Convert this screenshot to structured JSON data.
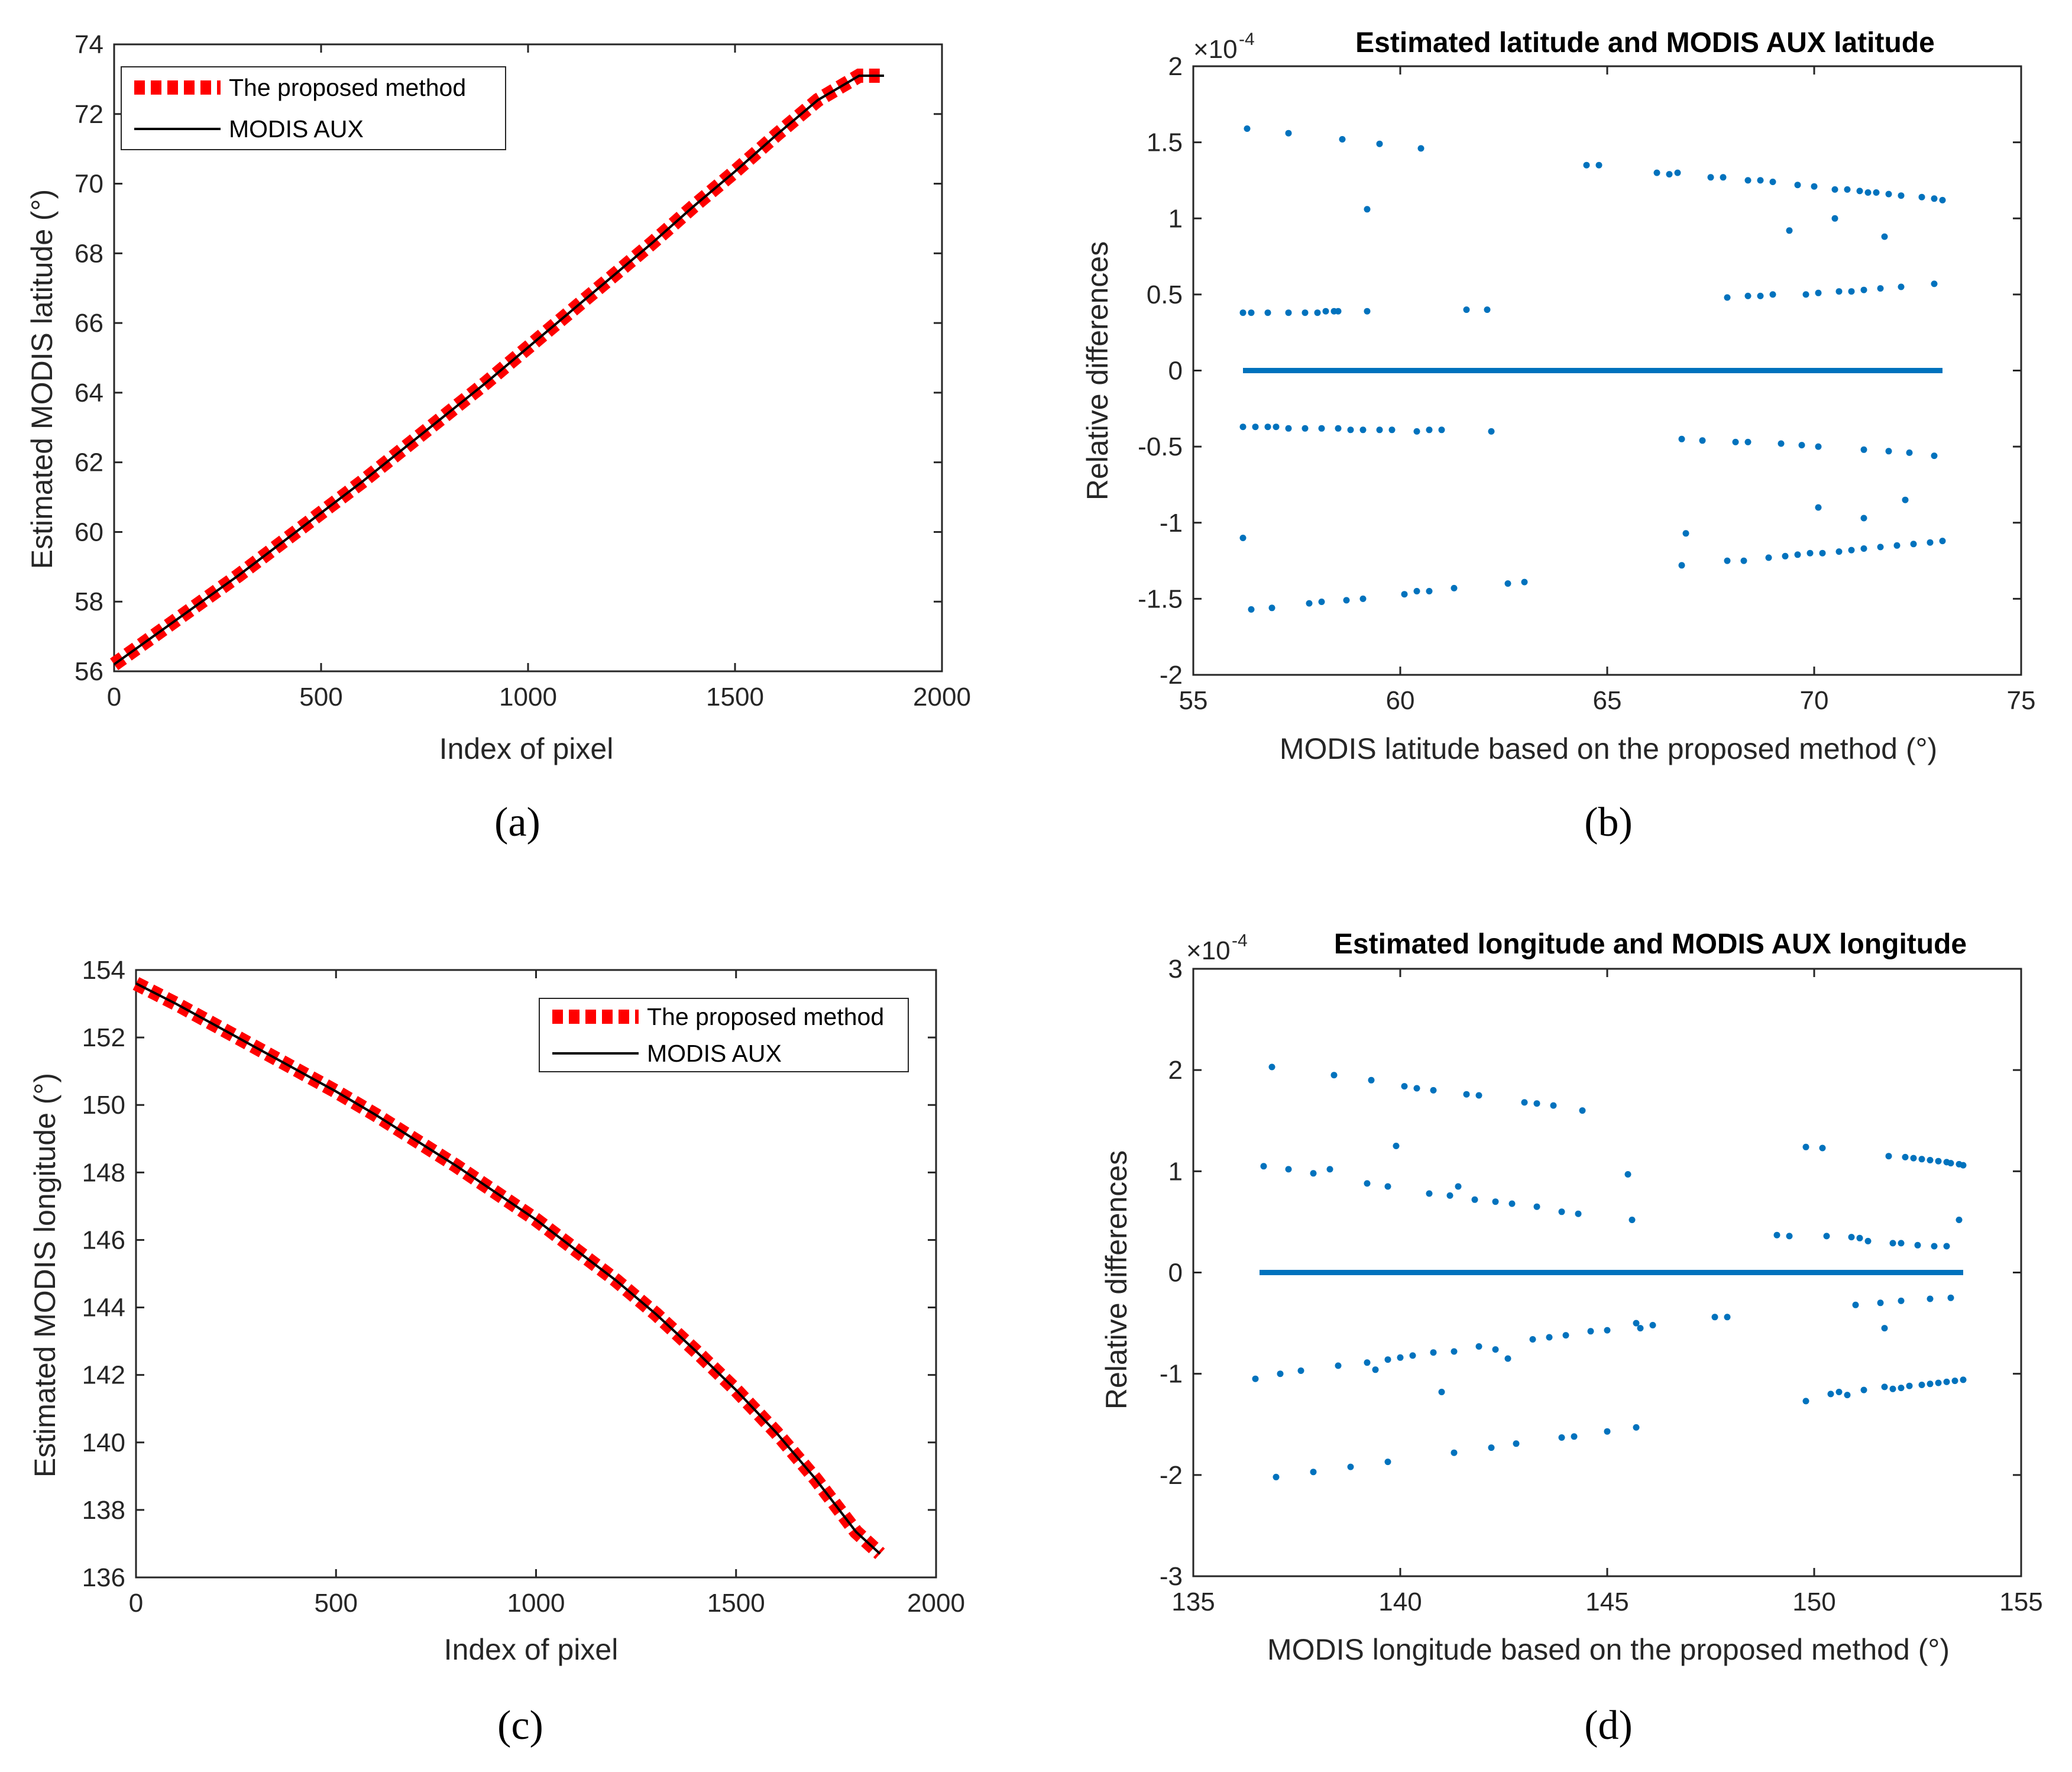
{
  "chart_data": [
    {
      "id": "a",
      "type": "line",
      "caption": "(a)",
      "xlabel": "Index of pixel",
      "ylabel": "Estimated MODIS latitude (°)",
      "title": "",
      "xlim": [
        0,
        2000
      ],
      "ylim": [
        56,
        74
      ],
      "xticks": [
        0,
        500,
        1000,
        1500,
        2000
      ],
      "yticks": [
        56,
        58,
        60,
        62,
        64,
        66,
        68,
        70,
        72,
        74
      ],
      "xtick_labels": [
        "0",
        "500",
        "1000",
        "1500",
        "2000"
      ],
      "ytick_labels": [
        "56",
        "58",
        "60",
        "62",
        "64",
        "66",
        "68",
        "70",
        "72",
        "74"
      ],
      "legend_position": "top-left",
      "series": [
        {
          "name": "The proposed method",
          "style": "dashed",
          "color": "#ff0000",
          "x": [
            0,
            100,
            200,
            300,
            400,
            500,
            600,
            700,
            800,
            900,
            1000,
            1100,
            1200,
            1300,
            1400,
            1500,
            1600,
            1700,
            1800,
            1860
          ],
          "y": [
            56.2,
            57.05,
            57.9,
            58.75,
            59.65,
            60.55,
            61.45,
            62.4,
            63.35,
            64.3,
            65.3,
            66.3,
            67.3,
            68.3,
            69.35,
            70.35,
            71.4,
            72.4,
            73.1,
            73.1
          ]
        },
        {
          "name": "MODIS AUX",
          "style": "solid",
          "color": "#000000",
          "x": [
            0,
            100,
            200,
            300,
            400,
            500,
            600,
            700,
            800,
            900,
            1000,
            1100,
            1200,
            1300,
            1400,
            1500,
            1600,
            1700,
            1800,
            1860
          ],
          "y": [
            56.2,
            57.05,
            57.9,
            58.75,
            59.65,
            60.55,
            61.45,
            62.4,
            63.35,
            64.3,
            65.3,
            66.3,
            67.3,
            68.3,
            69.35,
            70.35,
            71.4,
            72.4,
            73.1,
            73.1
          ]
        }
      ]
    },
    {
      "id": "b",
      "type": "scatter",
      "caption": "(b)",
      "title": "Estimated latitude and MODIS AUX latitude",
      "xlabel": "MODIS latitude based on the proposed method (°)",
      "ylabel": "Relative differences",
      "exponent_label": "×10",
      "exponent_power": "-4",
      "xlim": [
        55,
        75
      ],
      "ylim": [
        -2,
        2
      ],
      "xticks": [
        55,
        60,
        65,
        70,
        75
      ],
      "yticks": [
        -2,
        -1.5,
        -1,
        -0.5,
        0,
        0.5,
        1,
        1.5,
        2
      ],
      "xtick_labels": [
        "55",
        "60",
        "65",
        "70",
        "75"
      ],
      "ytick_labels": [
        "-2",
        "-1.5",
        "-1",
        "-0.5",
        "0",
        "0.5",
        "1",
        "1.5",
        "2"
      ],
      "zero_line": [
        56.2,
        73.1
      ],
      "points": [
        [
          56.3,
          1.59
        ],
        [
          57.3,
          1.56
        ],
        [
          58.6,
          1.52
        ],
        [
          59.5,
          1.49
        ],
        [
          60.5,
          1.46
        ],
        [
          59.2,
          1.06
        ],
        [
          64.5,
          1.35
        ],
        [
          64.8,
          1.35
        ],
        [
          66.2,
          1.3
        ],
        [
          66.5,
          1.29
        ],
        [
          66.7,
          1.3
        ],
        [
          67.5,
          1.27
        ],
        [
          67.8,
          1.27
        ],
        [
          68.4,
          1.25
        ],
        [
          68.7,
          1.25
        ],
        [
          69.0,
          1.24
        ],
        [
          69.6,
          1.22
        ],
        [
          70.0,
          1.21
        ],
        [
          70.5,
          1.19
        ],
        [
          70.8,
          1.19
        ],
        [
          71.1,
          1.18
        ],
        [
          71.3,
          1.17
        ],
        [
          71.5,
          1.17
        ],
        [
          71.8,
          1.16
        ],
        [
          72.1,
          1.15
        ],
        [
          72.6,
          1.14
        ],
        [
          72.9,
          1.13
        ],
        [
          73.1,
          1.12
        ],
        [
          69.4,
          0.92
        ],
        [
          70.5,
          1.0
        ],
        [
          71.7,
          0.88
        ],
        [
          56.2,
          0.38
        ],
        [
          56.4,
          0.38
        ],
        [
          56.8,
          0.38
        ],
        [
          57.3,
          0.38
        ],
        [
          57.7,
          0.38
        ],
        [
          58.0,
          0.38
        ],
        [
          58.2,
          0.39
        ],
        [
          58.4,
          0.39
        ],
        [
          58.5,
          0.39
        ],
        [
          59.2,
          0.39
        ],
        [
          61.6,
          0.4
        ],
        [
          62.1,
          0.4
        ],
        [
          67.9,
          0.48
        ],
        [
          68.4,
          0.49
        ],
        [
          68.7,
          0.49
        ],
        [
          69.0,
          0.5
        ],
        [
          69.8,
          0.5
        ],
        [
          70.1,
          0.51
        ],
        [
          70.6,
          0.52
        ],
        [
          70.9,
          0.52
        ],
        [
          71.2,
          0.53
        ],
        [
          71.6,
          0.54
        ],
        [
          72.1,
          0.55
        ],
        [
          72.9,
          0.57
        ],
        [
          56.2,
          -0.37
        ],
        [
          56.5,
          -0.37
        ],
        [
          56.8,
          -0.37
        ],
        [
          57.0,
          -0.37
        ],
        [
          57.3,
          -0.38
        ],
        [
          57.7,
          -0.38
        ],
        [
          58.1,
          -0.38
        ],
        [
          58.5,
          -0.38
        ],
        [
          58.8,
          -0.39
        ],
        [
          59.1,
          -0.39
        ],
        [
          59.5,
          -0.39
        ],
        [
          59.8,
          -0.39
        ],
        [
          60.4,
          -0.4
        ],
        [
          60.7,
          -0.39
        ],
        [
          61.0,
          -0.39
        ],
        [
          62.2,
          -0.4
        ],
        [
          66.8,
          -0.45
        ],
        [
          67.3,
          -0.46
        ],
        [
          68.1,
          -0.47
        ],
        [
          68.4,
          -0.47
        ],
        [
          69.2,
          -0.48
        ],
        [
          69.7,
          -0.49
        ],
        [
          70.1,
          -0.5
        ],
        [
          71.2,
          -0.52
        ],
        [
          71.8,
          -0.53
        ],
        [
          72.3,
          -0.54
        ],
        [
          72.9,
          -0.56
        ],
        [
          56.2,
          -1.1
        ],
        [
          66.9,
          -1.07
        ],
        [
          70.1,
          -0.9
        ],
        [
          71.2,
          -0.97
        ],
        [
          72.2,
          -0.85
        ],
        [
          56.4,
          -1.57
        ],
        [
          56.9,
          -1.56
        ],
        [
          57.8,
          -1.53
        ],
        [
          58.1,
          -1.52
        ],
        [
          58.7,
          -1.51
        ],
        [
          59.1,
          -1.5
        ],
        [
          60.1,
          -1.47
        ],
        [
          60.4,
          -1.45
        ],
        [
          60.7,
          -1.45
        ],
        [
          61.3,
          -1.43
        ],
        [
          62.6,
          -1.4
        ],
        [
          63.0,
          -1.39
        ],
        [
          66.8,
          -1.28
        ],
        [
          67.9,
          -1.25
        ],
        [
          68.3,
          -1.25
        ],
        [
          68.9,
          -1.23
        ],
        [
          69.3,
          -1.22
        ],
        [
          69.6,
          -1.21
        ],
        [
          69.9,
          -1.2
        ],
        [
          70.2,
          -1.2
        ],
        [
          70.6,
          -1.19
        ],
        [
          70.9,
          -1.18
        ],
        [
          71.2,
          -1.17
        ],
        [
          71.6,
          -1.16
        ],
        [
          72.0,
          -1.15
        ],
        [
          72.4,
          -1.14
        ],
        [
          72.8,
          -1.13
        ],
        [
          73.1,
          -1.12
        ]
      ]
    },
    {
      "id": "c",
      "type": "line",
      "caption": "(c)",
      "xlabel": "Index of pixel",
      "ylabel": "Estimated MODIS longitude (°)",
      "title": "",
      "xlim": [
        0,
        2000
      ],
      "ylim": [
        136,
        154
      ],
      "xticks": [
        0,
        500,
        1000,
        1500,
        2000
      ],
      "yticks": [
        136,
        138,
        140,
        142,
        144,
        146,
        148,
        150,
        152,
        154
      ],
      "xtick_labels": [
        "0",
        "500",
        "1000",
        "1500",
        "2000"
      ],
      "ytick_labels": [
        "136",
        "138",
        "140",
        "142",
        "144",
        "146",
        "148",
        "150",
        "152",
        "154"
      ],
      "legend_position": "top-right",
      "series": [
        {
          "name": "The proposed method",
          "style": "dashed",
          "color": "#ff0000",
          "x": [
            0,
            100,
            200,
            300,
            400,
            500,
            600,
            700,
            800,
            900,
            1000,
            1100,
            1200,
            1300,
            1400,
            1500,
            1600,
            1700,
            1800,
            1860
          ],
          "y": [
            153.6,
            153.0,
            152.35,
            151.7,
            151.05,
            150.4,
            149.7,
            148.95,
            148.2,
            147.4,
            146.6,
            145.7,
            144.8,
            143.8,
            142.7,
            141.55,
            140.3,
            138.9,
            137.35,
            136.7
          ]
        },
        {
          "name": "MODIS AUX",
          "style": "solid",
          "color": "#000000",
          "x": [
            0,
            100,
            200,
            300,
            400,
            500,
            600,
            700,
            800,
            900,
            1000,
            1100,
            1200,
            1300,
            1400,
            1500,
            1600,
            1700,
            1800,
            1860
          ],
          "y": [
            153.6,
            153.0,
            152.35,
            151.7,
            151.05,
            150.4,
            149.7,
            148.95,
            148.2,
            147.4,
            146.6,
            145.7,
            144.8,
            143.8,
            142.7,
            141.55,
            140.3,
            138.9,
            137.35,
            136.7
          ]
        }
      ]
    },
    {
      "id": "d",
      "type": "scatter",
      "caption": "(d)",
      "title": "Estimated longitude and MODIS AUX longitude",
      "xlabel": "MODIS longitude based on the proposed method (°)",
      "ylabel": "Relative differences",
      "exponent_label": "×10",
      "exponent_power": "-4",
      "xlim": [
        135,
        155
      ],
      "ylim": [
        -3,
        3
      ],
      "xticks": [
        135,
        140,
        145,
        150,
        155
      ],
      "yticks": [
        -3,
        -2,
        -1,
        0,
        1,
        2,
        3
      ],
      "xtick_labels": [
        "135",
        "140",
        "145",
        "150",
        "155"
      ],
      "ytick_labels": [
        "-3",
        "-2",
        "-1",
        "0",
        "1",
        "2",
        "3"
      ],
      "zero_line": [
        136.6,
        153.6
      ],
      "points": [
        [
          136.9,
          2.03
        ],
        [
          138.4,
          1.95
        ],
        [
          139.3,
          1.9
        ],
        [
          140.1,
          1.84
        ],
        [
          140.4,
          1.82
        ],
        [
          140.8,
          1.8
        ],
        [
          141.6,
          1.76
        ],
        [
          141.9,
          1.75
        ],
        [
          143.0,
          1.68
        ],
        [
          143.3,
          1.67
        ],
        [
          143.7,
          1.65
        ],
        [
          144.4,
          1.6
        ],
        [
          136.7,
          1.05
        ],
        [
          137.3,
          1.02
        ],
        [
          137.9,
          0.98
        ],
        [
          138.3,
          1.02
        ],
        [
          139.2,
          0.88
        ],
        [
          139.7,
          0.85
        ],
        [
          139.9,
          1.25
        ],
        [
          140.7,
          0.78
        ],
        [
          141.2,
          0.76
        ],
        [
          141.4,
          0.85
        ],
        [
          141.8,
          0.72
        ],
        [
          142.3,
          0.7
        ],
        [
          142.7,
          0.68
        ],
        [
          143.3,
          0.65
        ],
        [
          143.9,
          0.6
        ],
        [
          144.3,
          0.58
        ],
        [
          145.5,
          0.97
        ],
        [
          145.6,
          0.52
        ],
        [
          149.1,
          0.37
        ],
        [
          149.4,
          0.36
        ],
        [
          150.3,
          0.36
        ],
        [
          149.8,
          1.24
        ],
        [
          150.2,
          1.23
        ],
        [
          150.9,
          0.35
        ],
        [
          151.1,
          0.34
        ],
        [
          151.3,
          0.31
        ],
        [
          151.9,
          0.29
        ],
        [
          152.1,
          0.29
        ],
        [
          152.5,
          0.27
        ],
        [
          152.9,
          0.26
        ],
        [
          153.2,
          0.26
        ],
        [
          153.5,
          0.52
        ],
        [
          151.8,
          1.15
        ],
        [
          152.2,
          1.14
        ],
        [
          152.4,
          1.13
        ],
        [
          152.6,
          1.12
        ],
        [
          152.8,
          1.11
        ],
        [
          153.0,
          1.1
        ],
        [
          153.2,
          1.09
        ],
        [
          153.3,
          1.08
        ],
        [
          153.5,
          1.07
        ],
        [
          153.6,
          1.06
        ],
        [
          136.5,
          -1.05
        ],
        [
          137.1,
          -1.0
        ],
        [
          137.6,
          -0.97
        ],
        [
          138.5,
          -0.92
        ],
        [
          139.2,
          -0.89
        ],
        [
          139.4,
          -0.96
        ],
        [
          139.7,
          -0.86
        ],
        [
          140.0,
          -0.84
        ],
        [
          140.3,
          -0.82
        ],
        [
          140.8,
          -0.79
        ],
        [
          141.0,
          -1.18
        ],
        [
          141.3,
          -0.78
        ],
        [
          141.9,
          -0.73
        ],
        [
          142.3,
          -0.76
        ],
        [
          142.6,
          -0.85
        ],
        [
          143.2,
          -0.66
        ],
        [
          143.6,
          -0.64
        ],
        [
          144.0,
          -0.62
        ],
        [
          144.6,
          -0.58
        ],
        [
          145.0,
          -0.57
        ],
        [
          145.7,
          -0.5
        ],
        [
          145.8,
          -0.55
        ],
        [
          146.1,
          -0.52
        ],
        [
          147.6,
          -0.44
        ],
        [
          147.9,
          -0.44
        ],
        [
          151.0,
          -0.32
        ],
        [
          151.6,
          -0.3
        ],
        [
          151.7,
          -0.55
        ],
        [
          152.1,
          -0.28
        ],
        [
          152.8,
          -0.26
        ],
        [
          153.3,
          -0.25
        ],
        [
          149.8,
          -1.27
        ],
        [
          150.4,
          -1.2
        ],
        [
          150.6,
          -1.18
        ],
        [
          150.8,
          -1.21
        ],
        [
          151.2,
          -1.16
        ],
        [
          151.7,
          -1.13
        ],
        [
          151.9,
          -1.15
        ],
        [
          152.1,
          -1.14
        ],
        [
          152.3,
          -1.12
        ],
        [
          152.6,
          -1.11
        ],
        [
          152.8,
          -1.1
        ],
        [
          153.0,
          -1.09
        ],
        [
          153.2,
          -1.08
        ],
        [
          153.4,
          -1.07
        ],
        [
          153.6,
          -1.06
        ],
        [
          137.0,
          -2.02
        ],
        [
          137.9,
          -1.97
        ],
        [
          138.8,
          -1.92
        ],
        [
          139.7,
          -1.87
        ],
        [
          141.3,
          -1.78
        ],
        [
          142.2,
          -1.73
        ],
        [
          142.8,
          -1.69
        ],
        [
          143.9,
          -1.63
        ],
        [
          144.2,
          -1.62
        ],
        [
          145.0,
          -1.57
        ],
        [
          145.7,
          -1.53
        ]
      ]
    }
  ]
}
